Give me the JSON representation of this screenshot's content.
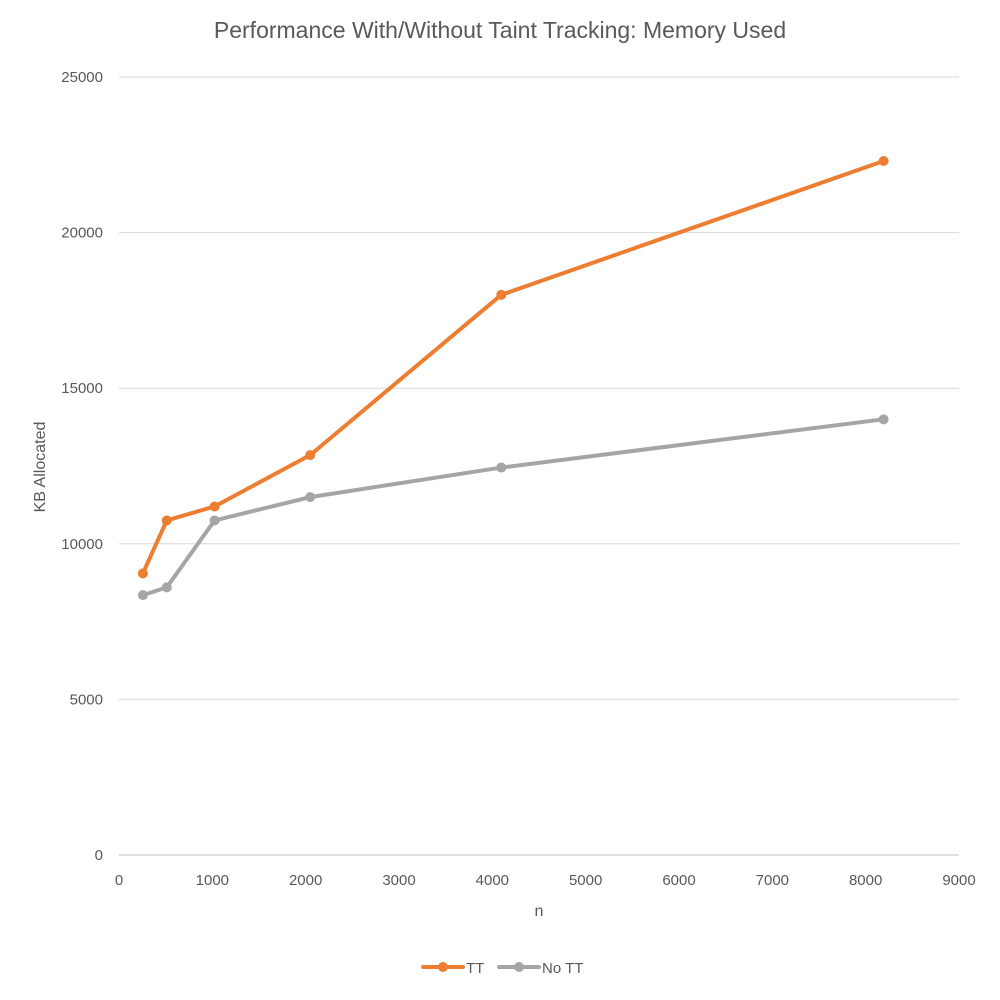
{
  "chart_data": {
    "type": "line",
    "title": "Performance With/Without Taint Tracking: Memory Used",
    "xlabel": "n",
    "ylabel": "KB Allocated",
    "xlim": [
      0,
      9000
    ],
    "ylim": [
      0,
      25000
    ],
    "x_ticks": [
      0,
      1000,
      2000,
      3000,
      4000,
      5000,
      6000,
      7000,
      8000,
      9000
    ],
    "y_ticks": [
      0,
      5000,
      10000,
      15000,
      20000,
      25000
    ],
    "grid": "horizontal",
    "legend_position": "bottom",
    "series": [
      {
        "name": "TT",
        "color": "#ed7d31",
        "x": [
          256,
          512,
          1024,
          2048,
          4096,
          8192
        ],
        "y": [
          9050,
          10750,
          11200,
          12850,
          18000,
          22300
        ]
      },
      {
        "name": "No TT",
        "color": "#a5a5a5",
        "x": [
          256,
          512,
          1024,
          2048,
          4096,
          8192
        ],
        "y": [
          8350,
          8600,
          10750,
          11500,
          12450,
          14000
        ]
      }
    ]
  }
}
